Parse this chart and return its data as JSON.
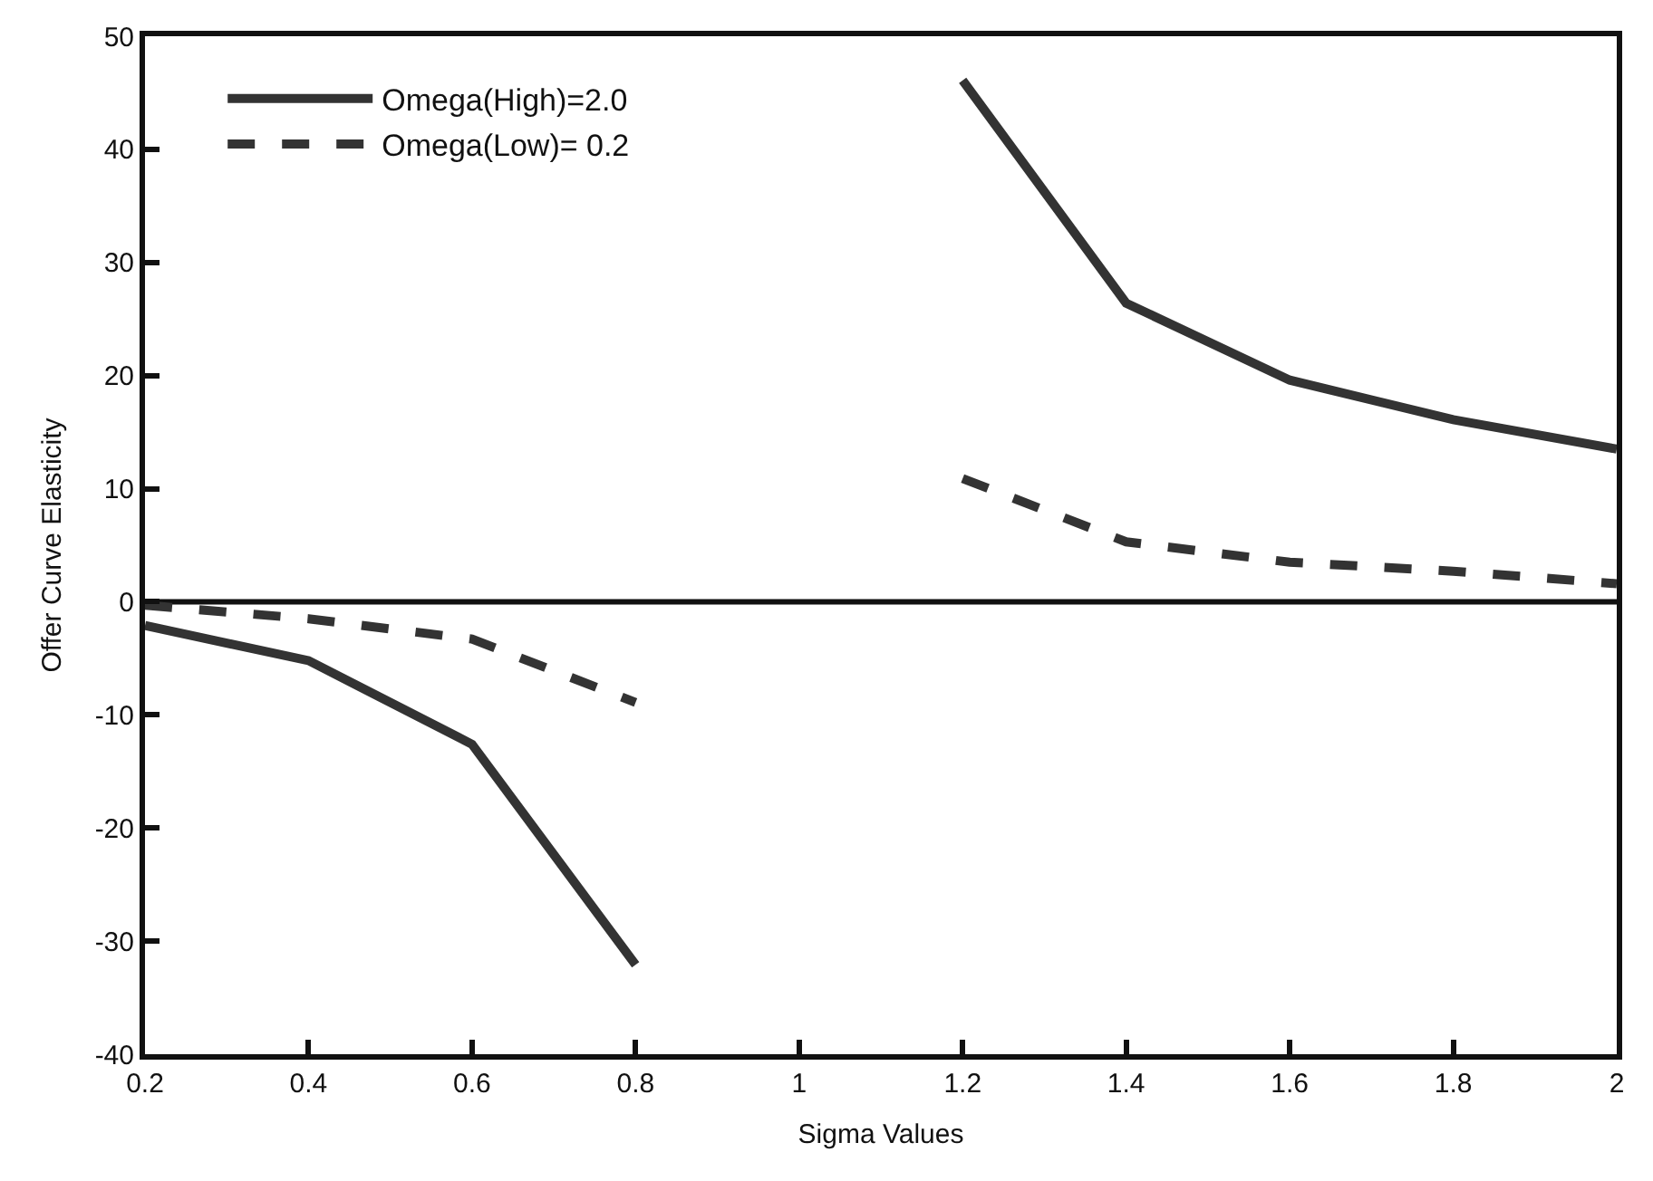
{
  "chart_data": {
    "type": "line",
    "xlabel": "Sigma Values",
    "ylabel": "Offer Curve Elasticity",
    "x": [
      0.2,
      0.4,
      0.6,
      0.8,
      1.0,
      1.2,
      1.4,
      1.6,
      1.8,
      2.0
    ],
    "series": [
      {
        "name": "Omega(High)=2.0",
        "color": "#333333",
        "line_style": "solid",
        "values": [
          -2.1,
          -5.2,
          -12.6,
          -32.1,
          null,
          46.1,
          26.4,
          19.6,
          16.1,
          13.5
        ]
      },
      {
        "name": "Omega(Low)= 0.2",
        "color": "#333333",
        "line_style": "dashed",
        "values": [
          -0.3,
          -1.5,
          -3.3,
          -8.9,
          null,
          10.9,
          5.3,
          3.5,
          2.7,
          1.6
        ]
      }
    ],
    "xlim": [
      0.2,
      2
    ],
    "xticks": [
      0.2,
      0.4,
      0.6,
      0.8,
      1,
      1.2,
      1.4,
      1.6,
      1.8,
      2
    ],
    "ylim": [
      -40,
      50
    ],
    "yticks": [
      -40,
      -30,
      -20,
      -10,
      0,
      10,
      20,
      30,
      40,
      50
    ],
    "ref_lines": [
      {
        "axis": "y",
        "value": 0,
        "color": "#111111",
        "line_style": "solid"
      }
    ],
    "grid": false,
    "legend": "top left",
    "marker": "none"
  }
}
